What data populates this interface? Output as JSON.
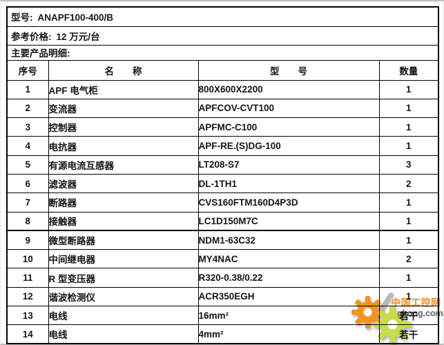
{
  "info": {
    "model_label": "型号:",
    "model_value": "ANAPF100-400/B",
    "price_label": "参考价格:",
    "price_value": "12 万元/台",
    "details_label": "主要产品明细:"
  },
  "table": {
    "headers": [
      "序号",
      "名　　称",
      "型　　号",
      "数量"
    ],
    "rows": [
      {
        "no": "1",
        "name": "APF 电气柜",
        "model": "800X600X2200",
        "qty": "1"
      },
      {
        "no": "2",
        "name": "变流器",
        "model": "APFCOV-CVT100",
        "qty": "1"
      },
      {
        "no": "3",
        "name": "控制器",
        "model": "APFMC-C100",
        "qty": "1"
      },
      {
        "no": "4",
        "name": "电抗器",
        "model": "APF-RE.(S)DG-100",
        "qty": "1"
      },
      {
        "no": "5",
        "name": "有源电流互感器",
        "model": "LT208-S7",
        "qty": "3"
      },
      {
        "no": "6",
        "name": "滤波器",
        "model": "DL-1TH1",
        "qty": "2"
      },
      {
        "no": "7",
        "name": "断路器",
        "model": "CVS160FTM160D4P3D",
        "qty": "1"
      },
      {
        "no": "8",
        "name": "接触器",
        "model": "LC1D150M7C",
        "qty": "1"
      },
      {
        "no": "9",
        "name": "微型断路器",
        "model": "NDM1-63C32",
        "qty": "1"
      },
      {
        "no": "10",
        "name": "中间继电器",
        "model": "MY4NAC",
        "qty": "2"
      },
      {
        "no": "11",
        "name": "R 型变压器",
        "model": "R320-0.38/0.22",
        "qty": "1"
      },
      {
        "no": "12",
        "name": "谐波检测仪",
        "model": "ACR350EGH",
        "qty": "1"
      },
      {
        "no": "13",
        "name": "电线",
        "model": "16mm²",
        "qty": "若干"
      },
      {
        "no": "14",
        "name": "电线",
        "model": "4mm²",
        "qty": "若干"
      }
    ]
  },
  "watermark": {
    "site_name": "中国工控网",
    "site_url": "gkong.com",
    "orange_color": "#f6921e",
    "green_color": "#c6dc48"
  }
}
